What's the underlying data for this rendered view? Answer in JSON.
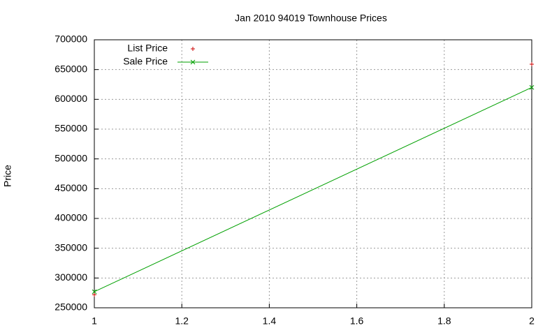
{
  "chart_data": {
    "type": "line",
    "title": "Jan 2010 94019 Townhouse Prices",
    "y_label": "Price",
    "x": [
      1,
      2
    ],
    "series": [
      {
        "name": "List Price",
        "color": "#cc0000",
        "marker": "+",
        "line": false,
        "values": [
          272000,
          659000
        ]
      },
      {
        "name": "Sale Price",
        "color": "#00a000",
        "marker": "x",
        "line": true,
        "values": [
          277000,
          620000
        ]
      }
    ],
    "xlim": [
      1,
      2
    ],
    "xticks": [
      1,
      1.2,
      1.4,
      1.6,
      1.8,
      2
    ],
    "ylim": [
      250000,
      700000
    ],
    "yticks": [
      250000,
      300000,
      350000,
      400000,
      450000,
      500000,
      550000,
      600000,
      650000,
      700000
    ],
    "grid": true,
    "legend": "top-left"
  }
}
